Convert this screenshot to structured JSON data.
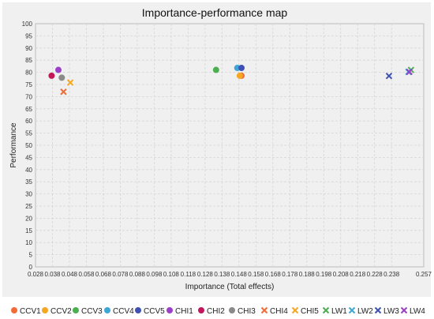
{
  "chart_data": {
    "type": "scatter",
    "title": "Importance-performance map",
    "xlabel": "Importance (Total effects)",
    "ylabel": "Performance",
    "xlim": [
      0.028,
      0.257
    ],
    "ylim": [
      0,
      100
    ],
    "x_ticks": [
      "0.028",
      "0.038",
      "0.048",
      "0.058",
      "0.068",
      "0.078",
      "0.088",
      "0.098",
      "0.108",
      "0.118",
      "0.128",
      "0.138",
      "0.148",
      "0.158",
      "0.168",
      "0.178",
      "0.188",
      "0.198",
      "0.208",
      "0.218",
      "0.228",
      "0.238",
      "0.257"
    ],
    "y_ticks": [
      "0",
      "5",
      "10",
      "15",
      "20",
      "25",
      "30",
      "35",
      "40",
      "45",
      "50",
      "55",
      "60",
      "65",
      "70",
      "75",
      "80",
      "85",
      "90",
      "95",
      "100"
    ],
    "grid": true,
    "legend_position": "bottom",
    "series": [
      {
        "name": "CCV1",
        "marker": "circle",
        "color": "#f26b36",
        "x": [
          0.1495
        ],
        "y": [
          78.6
        ]
      },
      {
        "name": "CCV2",
        "marker": "circle",
        "color": "#f5a623",
        "x": [
          0.1485
        ],
        "y": [
          78.6
        ]
      },
      {
        "name": "CCV3",
        "marker": "circle",
        "color": "#4caf50",
        "x": [
          0.1345
        ],
        "y": [
          81.0
        ]
      },
      {
        "name": "CCV4",
        "marker": "circle",
        "color": "#3fa7d6",
        "x": [
          0.147
        ],
        "y": [
          81.8
        ]
      },
      {
        "name": "CCV5",
        "marker": "circle",
        "color": "#3f51b5",
        "x": [
          0.1495
        ],
        "y": [
          81.8
        ]
      },
      {
        "name": "CHI1",
        "marker": "circle",
        "color": "#9b3fc8",
        "x": [
          0.0415
        ],
        "y": [
          81.0
        ]
      },
      {
        "name": "CHI2",
        "marker": "circle",
        "color": "#c2185b",
        "x": [
          0.0375
        ],
        "y": [
          78.6
        ]
      },
      {
        "name": "CHI3",
        "marker": "circle",
        "color": "#8a8a8a",
        "x": [
          0.0435
        ],
        "y": [
          77.8
        ]
      },
      {
        "name": "CHI4",
        "marker": "x",
        "color": "#f26b36",
        "x": [
          0.0445
        ],
        "y": [
          72.0
        ]
      },
      {
        "name": "CHI5",
        "marker": "x",
        "color": "#f5a623",
        "x": [
          0.0485
        ],
        "y": [
          75.8
        ]
      },
      {
        "name": "LW1",
        "marker": "x",
        "color": "#4caf50",
        "x": [
          0.2495
        ],
        "y": [
          81.0
        ]
      },
      {
        "name": "LW2",
        "marker": "x",
        "color": "#3fa7d6",
        "x": [
          0.248
        ],
        "y": [
          80.2
        ]
      },
      {
        "name": "LW3",
        "marker": "x",
        "color": "#3f51b5",
        "x": [
          0.2365
        ],
        "y": [
          78.5
        ]
      },
      {
        "name": "LW4",
        "marker": "x",
        "color": "#9b3fc8",
        "x": [
          0.2485
        ],
        "y": [
          80.2
        ]
      }
    ]
  }
}
